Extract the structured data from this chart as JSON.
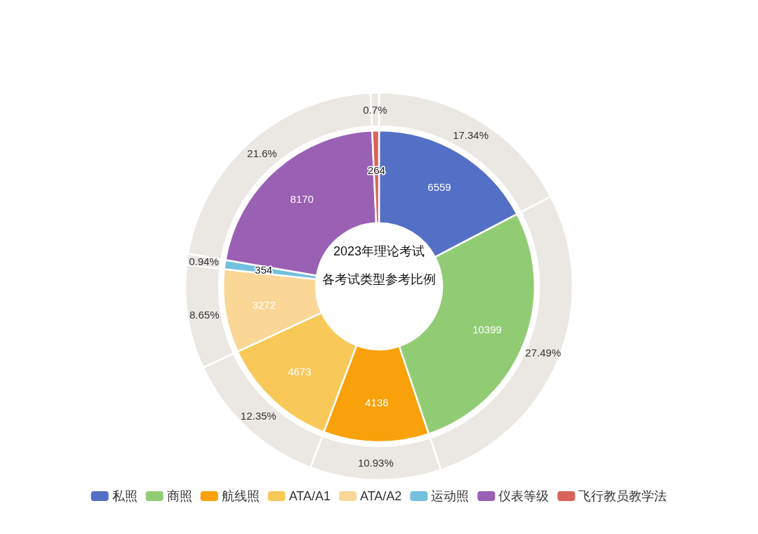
{
  "chart_data": {
    "type": "donut",
    "title": "2023年理论考试",
    "subtitle": "各考试类型参考比例",
    "categories": [
      "私照",
      "商照",
      "航线照",
      "ATA/A1",
      "ATA/A2",
      "运动照",
      "仪表等级",
      "飞行教员教学法"
    ],
    "series": [
      {
        "values": [
          6559,
          10399,
          4136,
          4673,
          3272,
          354,
          8170,
          264
        ],
        "colors": [
          "#5470c6",
          "#91cc75",
          "#f9a10a",
          "#f8c858",
          "#fad797",
          "#73c0de",
          "#9a60b4",
          "#d9625a"
        ]
      },
      {
        "values": [
          17.34,
          27.49,
          10.93,
          12.35,
          8.65,
          0.94,
          21.6,
          0.7
        ],
        "color": "#ebe8e4",
        "value_labels": [
          "17.34%",
          "27.49%",
          "10.93%",
          "12.35%",
          "8.65%",
          "0.94%",
          "21.6%",
          "0.7%"
        ]
      }
    ],
    "data_labels": true,
    "legend": "bottom"
  }
}
